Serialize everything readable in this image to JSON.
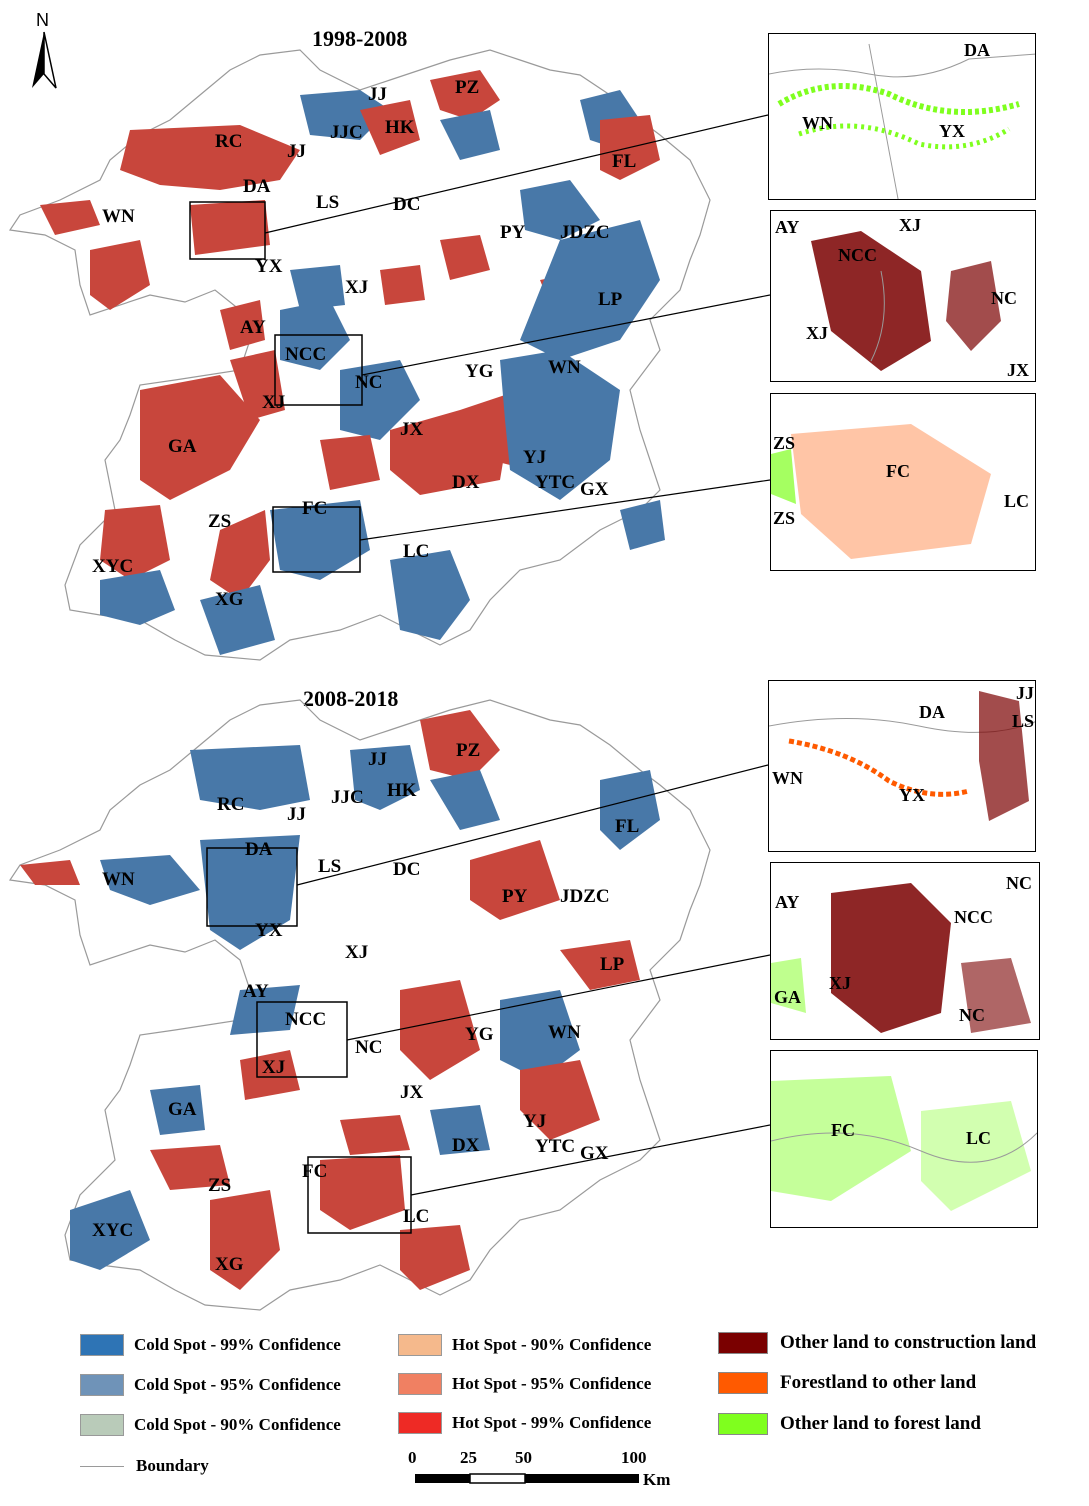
{
  "north_arrow": {
    "label": "N"
  },
  "maps": [
    {
      "title": "1998-2008",
      "labels": {
        "JJ1": "JJ",
        "PZ": "PZ",
        "RC": "RC",
        "JJ2": "JJ",
        "JJC": "JJC",
        "HK": "HK",
        "FL": "FL",
        "DA": "DA",
        "WN1": "WN",
        "LS": "LS",
        "DC": "DC",
        "PY": "PY",
        "JDZC": "JDZC",
        "YX": "YX",
        "XJ1": "XJ",
        "LP": "LP",
        "AY": "AY",
        "NCC": "NCC",
        "NC": "NC",
        "YG": "YG",
        "WN2": "WN",
        "XJ2": "XJ",
        "JX": "JX",
        "GA": "GA",
        "YJ": "YJ",
        "DX": "DX",
        "YTC": "YTC",
        "GX": "GX",
        "FC": "FC",
        "ZS": "ZS",
        "LC": "LC",
        "XYC": "XYC",
        "XG": "XG"
      }
    },
    {
      "title": "2008-2018",
      "labels": {
        "JJ1": "JJ",
        "PZ": "PZ",
        "RC": "RC",
        "JJ2": "JJ",
        "JJC": "JJC",
        "HK": "HK",
        "FL": "FL",
        "DA": "DA",
        "WN1": "WN",
        "LS": "LS",
        "DC": "DC",
        "PY": "PY",
        "JDZC": "JDZC",
        "YX": "YX",
        "XJ1": "XJ",
        "LP": "LP",
        "AY": "AY",
        "NCC": "NCC",
        "NC": "NC",
        "YG": "YG",
        "WN2": "WN",
        "XJ2": "XJ",
        "JX": "JX",
        "GA": "GA",
        "YJ": "YJ",
        "DX": "DX",
        "YTC": "YTC",
        "GX": "GX",
        "FC": "FC",
        "ZS": "ZS",
        "LC": "LC",
        "XYC": "XYC",
        "XG": "XG"
      }
    }
  ],
  "insets_top": [
    {
      "labels": [
        "DA",
        "WN",
        "YX"
      ]
    },
    {
      "labels": [
        "AY",
        "XJ",
        "NCC",
        "NC",
        "XJ",
        "JX"
      ]
    },
    {
      "labels": [
        "ZS",
        "FC",
        "ZS",
        "LC"
      ]
    }
  ],
  "insets_bottom": [
    {
      "labels": [
        "DA",
        "JJ",
        "LS",
        "WN",
        "YX"
      ]
    },
    {
      "labels": [
        "NC",
        "AY",
        "NCC",
        "XJ",
        "GA",
        "NC"
      ]
    },
    {
      "labels": [
        "FC",
        "LC"
      ]
    }
  ],
  "legend": {
    "items": [
      {
        "label": "Cold Spot - 99% Confidence",
        "color": "#2e74b5"
      },
      {
        "label": "Cold Spot - 95% Confidence",
        "color": "#6f93b8"
      },
      {
        "label": "Cold Spot - 90% Confidence",
        "color": "#b9cbb9"
      },
      {
        "label": "Hot Spot - 90% Confidence",
        "color": "#f5b98c"
      },
      {
        "label": "Hot Spot - 95% Confidence",
        "color": "#f08062"
      },
      {
        "label": "Hot Spot - 99% Confidence",
        "color": "#ee2a25"
      },
      {
        "label": "Other land to construction land",
        "color": "#7a0000"
      },
      {
        "label": "Forestland to other land",
        "color": "#ff5a00"
      },
      {
        "label": "Other land to forest land",
        "color": "#7fff1e"
      }
    ],
    "boundary_label": "Boundary"
  },
  "scale_bar": {
    "ticks": [
      "0",
      "25",
      "50",
      "100"
    ],
    "unit": "Km"
  },
  "colors": {
    "cold": "#4878a8",
    "hot": "#c8463c",
    "boundary": "#9a9a9a"
  }
}
